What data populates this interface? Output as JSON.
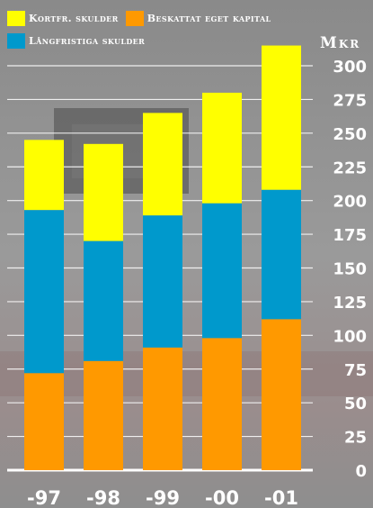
{
  "legend": [
    {
      "label": "Kortfr. skulder",
      "color": "#ffff00"
    },
    {
      "label": "Beskattat eget kapital",
      "color": "#ff9900"
    },
    {
      "label": "Långfristiga skulder",
      "color": "#0099cc"
    }
  ],
  "unit_label": "Mkr",
  "chart_data": {
    "type": "bar",
    "stacked": true,
    "categories": [
      "-97",
      "-98",
      "-99",
      "-00",
      "-01"
    ],
    "series": [
      {
        "name": "Beskattat eget kapital",
        "color": "#ff9900",
        "values": [
          72,
          81,
          91,
          98,
          112
        ]
      },
      {
        "name": "Långfristiga skulder",
        "color": "#0099cc",
        "values": [
          121,
          89,
          98,
          100,
          96
        ]
      },
      {
        "name": "Kortfr. skulder",
        "color": "#ffff00",
        "values": [
          52,
          72,
          76,
          82,
          107
        ]
      }
    ],
    "ylabel": "Mkr",
    "ylim": [
      0,
      300
    ],
    "yticks": [
      0,
      25,
      50,
      75,
      100,
      125,
      150,
      175,
      200,
      225,
      250,
      275,
      300
    ],
    "grid": true
  }
}
